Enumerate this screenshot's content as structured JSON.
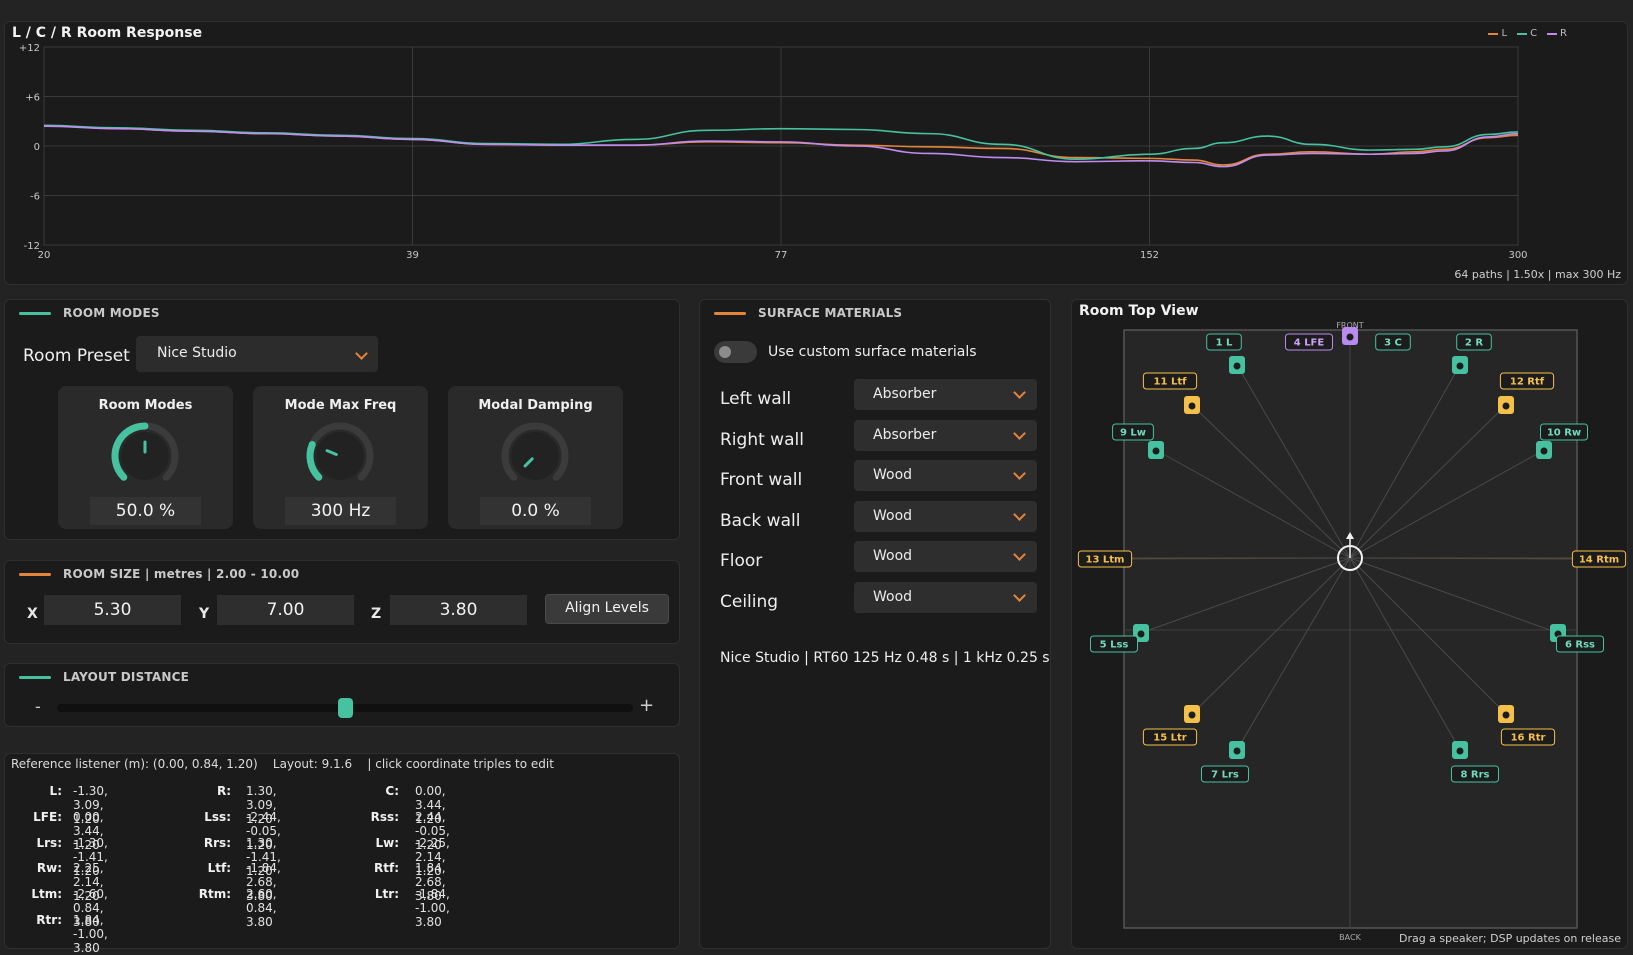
{
  "chart": {
    "title": "L / C / R Room Response",
    "legend": [
      {
        "name": "L",
        "color": "#e5853a"
      },
      {
        "name": "C",
        "color": "#46c2a0"
      },
      {
        "name": "R",
        "color": "#c18cf0"
      }
    ],
    "footer": "64 paths  |  1.50x  |  max 300 Hz"
  },
  "chart_data": {
    "type": "line",
    "title": "L / C / R Room Response",
    "xlabel": "",
    "ylabel": "",
    "x_ticks": [
      "20",
      "39",
      "77",
      "152",
      "300"
    ],
    "y_ticks": [
      "+12",
      "+6",
      "0",
      "-6",
      "-12"
    ],
    "ylim": [
      -12,
      12
    ],
    "grid": true,
    "legend_position": "top-right",
    "x": [
      0,
      0.05,
      0.1,
      0.15,
      0.2,
      0.25,
      0.3,
      0.35,
      0.4,
      0.45,
      0.5,
      0.55,
      0.6,
      0.65,
      0.7,
      0.75,
      0.78,
      0.8,
      0.83,
      0.86,
      0.9,
      0.93,
      0.95,
      0.98,
      1.0
    ],
    "series": [
      {
        "name": "L",
        "color": "#e5853a",
        "values": [
          2.5,
          2.1,
          1.8,
          1.5,
          1.2,
          0.8,
          0.2,
          0.1,
          0.1,
          0.5,
          0.4,
          0.1,
          -0.1,
          -0.3,
          -1.4,
          -1.5,
          -1.7,
          -2.3,
          -1.0,
          -0.7,
          -1.0,
          -0.7,
          -0.4,
          1.0,
          1.3
        ]
      },
      {
        "name": "C",
        "color": "#46c2a0",
        "values": [
          2.5,
          2.2,
          1.9,
          1.6,
          1.3,
          0.9,
          0.3,
          0.2,
          0.8,
          1.9,
          2.1,
          2.0,
          1.5,
          0.2,
          -1.6,
          -1.0,
          -0.3,
          0.4,
          1.2,
          0.2,
          -0.5,
          -0.4,
          -0.1,
          1.4,
          1.7
        ]
      },
      {
        "name": "R",
        "color": "#c18cf0",
        "values": [
          2.4,
          2.1,
          1.8,
          1.5,
          1.2,
          0.8,
          0.2,
          0.1,
          0.1,
          0.6,
          0.5,
          0.0,
          -0.9,
          -1.4,
          -1.9,
          -1.8,
          -2.0,
          -2.5,
          -1.1,
          -0.9,
          -1.0,
          -0.9,
          -0.6,
          1.1,
          1.5
        ]
      }
    ]
  },
  "room_modes": {
    "heading": "ROOM MODES",
    "preset_label": "Room Preset",
    "preset_value": "Nice Studio",
    "knobs": [
      {
        "title": "Room Modes",
        "value": "50.0 %",
        "fraction": 0.5,
        "color": "#46c2a0"
      },
      {
        "title": "Mode Max Freq",
        "value": "300 Hz",
        "fraction": 0.25,
        "color": "#46c2a0"
      },
      {
        "title": "Modal Damping",
        "value": "0.0 %",
        "fraction": 0.0,
        "color": "#46c2a0"
      }
    ]
  },
  "room_size": {
    "heading": "ROOM SIZE  |  metres  |  2.00 - 10.00",
    "x_label": "X",
    "x_value": "5.30",
    "y_label": "Y",
    "y_value": "7.00",
    "z_label": "Z",
    "z_value": "3.80",
    "align_label": "Align Levels"
  },
  "layout_distance": {
    "heading": "LAYOUT DISTANCE",
    "minus": "-",
    "plus": "+",
    "fraction": 0.5
  },
  "coords": {
    "header": "Reference listener (m): (0.00, 0.84, 1.20)    Layout: 9.1.6    | click coordinate triples to edit",
    "items": [
      {
        "label": "L:",
        "value": "-1.30, 3.09, 1.20"
      },
      {
        "label": "R:",
        "value": "1.30, 3.09, 1.20"
      },
      {
        "label": "C:",
        "value": "0.00, 3.44, 1.20"
      },
      {
        "label": "LFE:",
        "value": "0.00, 3.44, 1.20"
      },
      {
        "label": "Lss:",
        "value": "-2.44, -0.05, 1.20"
      },
      {
        "label": "Rss:",
        "value": "2.44, -0.05, 1.20"
      },
      {
        "label": "Lrs:",
        "value": "-1.30, -1.41, 1.20"
      },
      {
        "label": "Rrs:",
        "value": "1.30, -1.41, 1.20"
      },
      {
        "label": "Lw:",
        "value": "-2.25, 2.14, 1.20"
      },
      {
        "label": "Rw:",
        "value": "2.25, 2.14, 1.20"
      },
      {
        "label": "Ltf:",
        "value": "-1.84, 2.68, 3.80"
      },
      {
        "label": "Rtf:",
        "value": "1.84, 2.68, 3.80"
      },
      {
        "label": "Ltm:",
        "value": "-2.60, 0.84, 3.80"
      },
      {
        "label": "Rtm:",
        "value": "2.60, 0.84, 3.80"
      },
      {
        "label": "Ltr:",
        "value": "-1.84, -1.00, 3.80"
      },
      {
        "label": "Rtr:",
        "value": "1.84, -1.00, 3.80"
      }
    ]
  },
  "surface": {
    "heading": "SURFACE MATERIALS",
    "toggle_label": "Use custom surface materials",
    "toggle_on": false,
    "rows": [
      {
        "label": "Left wall",
        "value": "Absorber"
      },
      {
        "label": "Right wall",
        "value": "Absorber"
      },
      {
        "label": "Front wall",
        "value": "Wood"
      },
      {
        "label": "Back wall",
        "value": "Wood"
      },
      {
        "label": "Floor",
        "value": "Wood"
      },
      {
        "label": "Ceiling",
        "value": "Wood"
      }
    ],
    "summary": "Nice Studio | RT60 125 Hz 0.48 s | 1 kHz 0.25 s"
  },
  "room_view": {
    "title": "Room Top View",
    "front_label": "FRONT",
    "back_label": "BACK",
    "footer": "Drag a speaker; DSP updates on release",
    "colors": {
      "bed": "#46c2a0",
      "height": "#f5c04a",
      "lfe": "#b98af0",
      "height_text": "#f5c04a"
    },
    "speakers": [
      {
        "label": "1 L",
        "kind": "bed"
      },
      {
        "label": "2 R",
        "kind": "bed"
      },
      {
        "label": "3 C",
        "kind": "bed"
      },
      {
        "label": "4 LFE",
        "kind": "lfe"
      },
      {
        "label": "5 Lss",
        "kind": "bed"
      },
      {
        "label": "6 Rss",
        "kind": "bed"
      },
      {
        "label": "7 Lrs",
        "kind": "bed"
      },
      {
        "label": "8 Rrs",
        "kind": "bed"
      },
      {
        "label": "9 Lw",
        "kind": "bed"
      },
      {
        "label": "10 Rw",
        "kind": "bed"
      },
      {
        "label": "11 Ltf",
        "kind": "height"
      },
      {
        "label": "12 Rtf",
        "kind": "height"
      },
      {
        "label": "13 Ltm",
        "kind": "height"
      },
      {
        "label": "14 Rtm",
        "kind": "height"
      },
      {
        "label": "15 Ltr",
        "kind": "height"
      },
      {
        "label": "16 Rtr",
        "kind": "height"
      }
    ]
  }
}
